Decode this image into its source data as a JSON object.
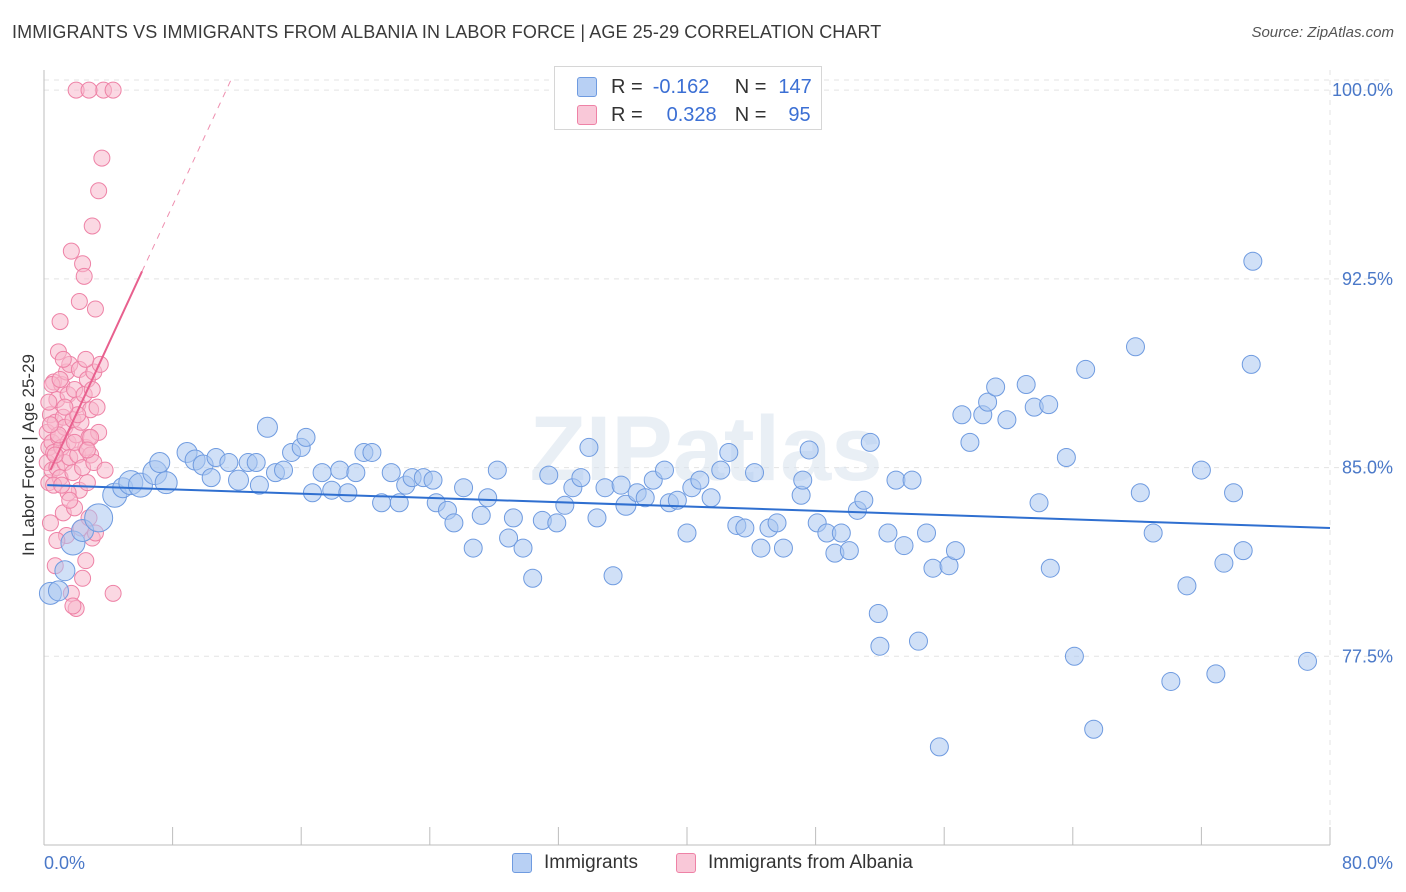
{
  "title": "IMMIGRANTS VS IMMIGRANTS FROM ALBANIA IN LABOR FORCE | AGE 25-29 CORRELATION CHART",
  "source": "Source: ZipAtlas.com",
  "watermark": "ZIPatlas",
  "colors": {
    "blue_fill": "#a9c6f0",
    "blue_stroke": "#6f9be0",
    "blue_line": "#2f6fd0",
    "pink_fill": "#f7b8cc",
    "pink_stroke": "#ee82a6",
    "pink_line": "#e8608e",
    "grid": "#e3e3e3",
    "tick_text": "#4a78c8"
  },
  "legend": {
    "rows": [
      {
        "r_label": "R =",
        "r_value": "-0.162",
        "n_label": "N =",
        "n_value": "147"
      },
      {
        "r_label": "R =",
        "r_value": "0.328",
        "n_label": "N =",
        "n_value": "95"
      }
    ]
  },
  "bottom_legend": {
    "series1": "Immigrants",
    "series2": "Immigrants from Albania"
  },
  "chart_data": {
    "type": "scatter",
    "title": "IMMIGRANTS VS IMMIGRANTS FROM ALBANIA IN LABOR FORCE | AGE 25-29 CORRELATION CHART",
    "xlabel": "",
    "ylabel": "In Labor Force | Age 25-29",
    "xlim": [
      0,
      80
    ],
    "ylim": [
      70.0,
      100.8
    ],
    "x_tick_labels": [
      "0.0%",
      "80.0%"
    ],
    "y_ticks": [
      77.5,
      85.0,
      92.5,
      100.0
    ],
    "y_tick_labels": [
      "77.5%",
      "85.0%",
      "92.5%",
      "100.0%"
    ],
    "grid": true,
    "legend_position": "top-center",
    "series": [
      {
        "name": "Immigrants",
        "color": "#a9c6f0",
        "trend": {
          "x0": 0.2,
          "y0": 84.3,
          "x1": 80.0,
          "y1": 82.6
        },
        "points": [
          [
            0.4,
            80.0,
            11
          ],
          [
            0.9,
            80.1,
            10
          ],
          [
            1.3,
            80.9,
            10
          ],
          [
            1.8,
            82.0,
            12
          ],
          [
            2.4,
            82.5,
            11
          ],
          [
            3.4,
            83.0,
            14
          ],
          [
            4.4,
            83.9,
            12
          ],
          [
            4.9,
            84.2,
            10
          ],
          [
            5.4,
            84.4,
            12
          ],
          [
            6.0,
            84.3,
            12
          ],
          [
            6.9,
            84.8,
            12
          ],
          [
            7.6,
            84.4,
            11
          ],
          [
            7.2,
            85.2,
            10
          ],
          [
            8.9,
            85.6,
            10
          ],
          [
            9.4,
            85.3,
            10
          ],
          [
            9.9,
            85.1,
            10
          ],
          [
            10.7,
            85.4,
            9
          ],
          [
            10.4,
            84.6,
            9
          ],
          [
            11.5,
            85.2,
            9
          ],
          [
            12.1,
            84.5,
            10
          ],
          [
            12.7,
            85.2,
            9
          ],
          [
            13.2,
            85.2,
            9
          ],
          [
            13.4,
            84.3,
            9
          ],
          [
            13.9,
            86.6,
            10
          ],
          [
            14.4,
            84.8,
            9
          ],
          [
            14.9,
            84.9,
            9
          ],
          [
            15.4,
            85.6,
            9
          ],
          [
            16.0,
            85.8,
            9
          ],
          [
            16.3,
            86.2,
            9
          ],
          [
            16.7,
            84.0,
            9
          ],
          [
            17.3,
            84.8,
            9
          ],
          [
            17.9,
            84.1,
            9
          ],
          [
            18.4,
            84.9,
            9
          ],
          [
            18.9,
            84.0,
            9
          ],
          [
            19.4,
            84.8,
            9
          ],
          [
            19.9,
            85.6,
            9
          ],
          [
            20.4,
            85.6,
            9
          ],
          [
            21.0,
            83.6,
            9
          ],
          [
            21.6,
            84.8,
            9
          ],
          [
            22.1,
            83.6,
            9
          ],
          [
            22.5,
            84.3,
            9
          ],
          [
            22.9,
            84.6,
            9
          ],
          [
            23.6,
            84.6,
            9
          ],
          [
            24.2,
            84.5,
            9
          ],
          [
            24.4,
            83.6,
            9
          ],
          [
            25.1,
            83.3,
            9
          ],
          [
            25.5,
            82.8,
            9
          ],
          [
            26.1,
            84.2,
            9
          ],
          [
            26.7,
            81.8,
            9
          ],
          [
            27.2,
            83.1,
            9
          ],
          [
            27.6,
            83.8,
            9
          ],
          [
            28.2,
            84.9,
            9
          ],
          [
            28.9,
            82.2,
            9
          ],
          [
            29.2,
            83.0,
            9
          ],
          [
            29.8,
            81.8,
            9
          ],
          [
            30.4,
            80.6,
            9
          ],
          [
            31.0,
            82.9,
            9
          ],
          [
            31.4,
            84.7,
            9
          ],
          [
            31.9,
            82.8,
            9
          ],
          [
            32.4,
            83.5,
            9
          ],
          [
            32.9,
            84.2,
            9
          ],
          [
            33.4,
            84.6,
            9
          ],
          [
            33.9,
            85.8,
            9
          ],
          [
            34.4,
            83.0,
            9
          ],
          [
            34.9,
            84.2,
            9
          ],
          [
            35.4,
            80.7,
            9
          ],
          [
            35.9,
            84.3,
            9
          ],
          [
            36.2,
            83.5,
            10
          ],
          [
            36.9,
            84.0,
            9
          ],
          [
            37.4,
            83.8,
            9
          ],
          [
            37.9,
            84.5,
            9
          ],
          [
            38.6,
            84.9,
            9
          ],
          [
            38.9,
            83.6,
            9
          ],
          [
            39.4,
            83.7,
            9
          ],
          [
            40.0,
            82.4,
            9
          ],
          [
            40.3,
            84.2,
            9
          ],
          [
            40.8,
            84.5,
            9
          ],
          [
            41.5,
            83.8,
            9
          ],
          [
            42.1,
            84.9,
            9
          ],
          [
            42.6,
            85.6,
            9
          ],
          [
            43.1,
            82.7,
            9
          ],
          [
            43.6,
            82.6,
            9
          ],
          [
            44.2,
            84.8,
            9
          ],
          [
            44.6,
            81.8,
            9
          ],
          [
            45.1,
            82.6,
            9
          ],
          [
            45.6,
            82.8,
            9
          ],
          [
            46.0,
            81.8,
            9
          ],
          [
            47.1,
            83.9,
            9
          ],
          [
            47.6,
            85.7,
            9
          ],
          [
            47.2,
            84.5,
            9
          ],
          [
            48.1,
            82.8,
            9
          ],
          [
            48.7,
            82.4,
            9
          ],
          [
            49.2,
            81.6,
            9
          ],
          [
            49.6,
            82.4,
            9
          ],
          [
            50.1,
            81.7,
            9
          ],
          [
            50.6,
            83.3,
            9
          ],
          [
            51.0,
            83.7,
            9
          ],
          [
            51.4,
            86.0,
            9
          ],
          [
            51.9,
            79.2,
            9
          ],
          [
            52.0,
            77.9,
            9
          ],
          [
            52.5,
            82.4,
            9
          ],
          [
            53.0,
            84.5,
            9
          ],
          [
            53.5,
            81.9,
            9
          ],
          [
            54.0,
            84.5,
            9
          ],
          [
            54.4,
            78.1,
            9
          ],
          [
            54.9,
            82.4,
            9
          ],
          [
            55.3,
            81.0,
            9
          ],
          [
            55.7,
            73.9,
            9
          ],
          [
            56.3,
            81.1,
            9
          ],
          [
            56.7,
            81.7,
            9
          ],
          [
            57.1,
            87.1,
            9
          ],
          [
            57.6,
            86.0,
            9
          ],
          [
            58.4,
            87.1,
            9
          ],
          [
            58.7,
            87.6,
            9
          ],
          [
            59.2,
            88.2,
            9
          ],
          [
            59.9,
            86.9,
            9
          ],
          [
            61.1,
            88.3,
            9
          ],
          [
            61.6,
            87.4,
            9
          ],
          [
            61.9,
            83.6,
            9
          ],
          [
            62.5,
            87.5,
            9
          ],
          [
            62.6,
            81.0,
            9
          ],
          [
            63.6,
            85.4,
            9
          ],
          [
            64.1,
            77.5,
            9
          ],
          [
            64.8,
            88.9,
            9
          ],
          [
            65.3,
            74.6,
            9
          ],
          [
            67.9,
            89.8,
            9
          ],
          [
            68.2,
            84.0,
            9
          ],
          [
            69.0,
            82.4,
            9
          ],
          [
            70.1,
            76.5,
            9
          ],
          [
            71.1,
            80.3,
            9
          ],
          [
            72.0,
            84.9,
            9
          ],
          [
            72.9,
            76.8,
            9
          ],
          [
            73.4,
            81.2,
            9
          ],
          [
            74.0,
            84.0,
            9
          ],
          [
            74.6,
            81.7,
            9
          ],
          [
            75.1,
            89.1,
            9
          ],
          [
            75.2,
            93.2,
            9
          ],
          [
            78.6,
            77.3,
            9
          ]
        ]
      },
      {
        "name": "Immigrants from Albania",
        "color": "#f7b8cc",
        "trend": {
          "x0": 0.4,
          "y0": 84.9,
          "x1": 6.1,
          "y1": 92.8
        },
        "trend_dashed": {
          "x0": 6.1,
          "y0": 92.8,
          "x1": 11.7,
          "y1": 100.5
        },
        "points": [
          [
            0.2,
            85.2
          ],
          [
            0.2,
            86.4
          ],
          [
            0.3,
            84.4
          ],
          [
            0.3,
            85.8
          ],
          [
            0.4,
            87.1
          ],
          [
            0.4,
            82.8
          ],
          [
            0.5,
            86.0
          ],
          [
            0.5,
            84.9
          ],
          [
            0.6,
            88.4
          ],
          [
            0.6,
            85.6
          ],
          [
            0.7,
            86.8
          ],
          [
            0.7,
            81.1
          ],
          [
            0.8,
            87.7
          ],
          [
            0.8,
            85.0
          ],
          [
            0.9,
            89.6
          ],
          [
            0.9,
            86.2
          ],
          [
            1.0,
            90.8
          ],
          [
            1.0,
            84.6
          ],
          [
            1.1,
            88.3
          ],
          [
            1.1,
            85.8
          ],
          [
            1.2,
            87.0
          ],
          [
            1.2,
            83.2
          ],
          [
            1.3,
            86.6
          ],
          [
            1.3,
            85.2
          ],
          [
            1.4,
            88.8
          ],
          [
            1.4,
            82.3
          ],
          [
            1.5,
            87.9
          ],
          [
            1.5,
            86.0
          ],
          [
            1.6,
            85.4
          ],
          [
            1.6,
            89.1
          ],
          [
            1.7,
            93.6
          ],
          [
            1.7,
            80.0
          ],
          [
            1.8,
            86.9
          ],
          [
            1.8,
            84.8
          ],
          [
            1.9,
            88.1
          ],
          [
            1.9,
            83.4
          ],
          [
            2.0,
            86.3
          ],
          [
            2.0,
            79.4
          ],
          [
            2.1,
            87.5
          ],
          [
            2.1,
            85.5
          ],
          [
            2.2,
            88.9
          ],
          [
            2.2,
            84.1
          ],
          [
            2.3,
            86.8
          ],
          [
            2.3,
            82.6
          ],
          [
            2.4,
            93.1
          ],
          [
            2.4,
            85.0
          ],
          [
            2.5,
            92.6
          ],
          [
            2.5,
            87.9
          ],
          [
            2.6,
            85.8
          ],
          [
            2.6,
            81.3
          ],
          [
            2.7,
            88.5
          ],
          [
            2.7,
            84.4
          ],
          [
            2.8,
            86.2
          ],
          [
            2.8,
            83.0
          ],
          [
            2.9,
            87.3
          ],
          [
            2.9,
            85.5
          ],
          [
            3.0,
            94.6
          ],
          [
            3.0,
            82.2
          ],
          [
            3.1,
            88.8
          ],
          [
            3.1,
            85.2
          ],
          [
            3.2,
            91.3
          ],
          [
            3.3,
            87.4
          ],
          [
            3.4,
            96.0
          ],
          [
            3.4,
            86.4
          ],
          [
            3.5,
            89.1
          ],
          [
            3.6,
            97.3
          ],
          [
            3.7,
            100.0
          ],
          [
            4.3,
            100.0
          ],
          [
            3.8,
            84.9
          ],
          [
            4.3,
            80.0
          ],
          [
            2.0,
            100.0
          ],
          [
            2.8,
            100.0
          ],
          [
            0.5,
            88.3
          ],
          [
            0.8,
            82.1
          ],
          [
            1.2,
            89.3
          ],
          [
            1.5,
            84.0
          ],
          [
            2.2,
            91.6
          ],
          [
            0.3,
            87.6
          ],
          [
            0.9,
            86.3
          ],
          [
            1.9,
            86.0
          ],
          [
            2.6,
            89.3
          ],
          [
            1.6,
            83.7
          ],
          [
            0.6,
            84.3
          ],
          [
            3.2,
            82.4
          ],
          [
            2.1,
            87.1
          ],
          [
            1.0,
            88.5
          ],
          [
            0.4,
            86.7
          ],
          [
            2.9,
            86.2
          ],
          [
            1.8,
            79.5
          ],
          [
            1.1,
            84.3
          ],
          [
            0.7,
            85.5
          ],
          [
            2.4,
            80.6
          ],
          [
            3.0,
            88.1
          ],
          [
            1.3,
            87.4
          ],
          [
            2.7,
            85.7
          ]
        ]
      }
    ]
  }
}
